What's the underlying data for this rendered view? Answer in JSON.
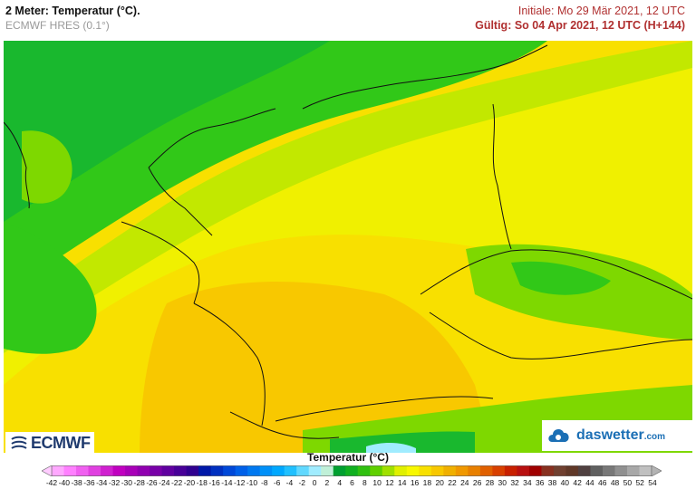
{
  "header": {
    "title": "2 Meter: Temperatur (°C).",
    "model": "ECMWF HRES (0.1°)",
    "initial": "Initiale: Mo 29 Mär 2021, 12 UTC",
    "valid": "Gültig: So 04 Apr 2021, 12 UTC (H+144)"
  },
  "logos": {
    "left": "ECMWF",
    "right_main": "daswetter",
    "right_suffix": ".com"
  },
  "legend": {
    "title": "Temperatur (°C)",
    "min_arrow_color": "#ffccff",
    "max_arrow_color": "#b3b3b3",
    "ticks": [
      "-42",
      "-40",
      "-38",
      "-36",
      "-34",
      "-32",
      "-30",
      "-28",
      "-26",
      "-24",
      "-22",
      "-20",
      "-18",
      "-16",
      "-14",
      "-12",
      "-10",
      "-8",
      "-6",
      "-4",
      "-2",
      "0",
      "2",
      "4",
      "6",
      "8",
      "10",
      "12",
      "14",
      "16",
      "18",
      "20",
      "22",
      "24",
      "26",
      "28",
      "30",
      "32",
      "34",
      "36",
      "38",
      "40",
      "42",
      "44",
      "46",
      "48",
      "50",
      "52",
      "54"
    ],
    "colors": [
      "#ffa8ff",
      "#ff80ff",
      "#f060f0",
      "#e040e0",
      "#d020d0",
      "#c000c0",
      "#a800b8",
      "#9000b0",
      "#7800a8",
      "#6000a0",
      "#480098",
      "#300090",
      "#0018a8",
      "#0030c0",
      "#0048d8",
      "#0060e8",
      "#0078f0",
      "#0090f8",
      "#00a8ff",
      "#20c0ff",
      "#60d8ff",
      "#a0ecff",
      "#c0f0d8",
      "#00a030",
      "#10b020",
      "#30c010",
      "#60d000",
      "#a0e000",
      "#e0f000",
      "#f8f800",
      "#f8e000",
      "#f8c800",
      "#f0b000",
      "#f09800",
      "#e88000",
      "#e06000",
      "#d84000",
      "#c82000",
      "#b81010",
      "#a00000",
      "#883020",
      "#704030",
      "#603828",
      "#504040",
      "#606060",
      "#787878",
      "#909090",
      "#a8a8a8",
      "#c0c0c0"
    ]
  },
  "map": {
    "colors": {
      "green_dark": "#19b82e",
      "green_mid": "#31c818",
      "green_light": "#7ed800",
      "yellow_green": "#c2e800",
      "yellow": "#f0f000",
      "yellow_warm": "#f8e000",
      "orange_light": "#f8c800",
      "border": "#111111"
    }
  }
}
